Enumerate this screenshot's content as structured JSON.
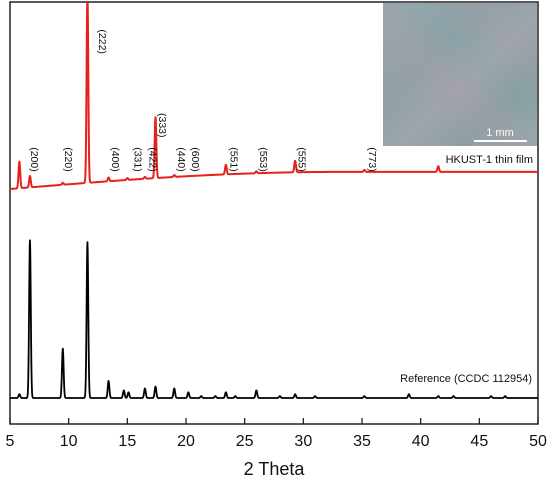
{
  "chart_data": {
    "type": "line",
    "xlabel": "2 Theta",
    "ylabel": "",
    "xlim": [
      5,
      50
    ],
    "x_ticks": [
      5,
      10,
      15,
      20,
      25,
      30,
      35,
      40,
      45,
      50
    ],
    "grid": false,
    "y_ticks_shown": false,
    "series": [
      {
        "name": "HKUST-1 thin film",
        "color": "#e8201a",
        "offset": 1.1,
        "baseline_start": 0.0,
        "baseline_end": 0.09,
        "peaks": [
          {
            "x": 5.8,
            "h": 0.14
          },
          {
            "x": 6.7,
            "h": 0.06
          },
          {
            "x": 9.5,
            "h": 0.01
          },
          {
            "x": 11.6,
            "h": 1.0
          },
          {
            "x": 13.4,
            "h": 0.02
          },
          {
            "x": 15.0,
            "h": 0.01
          },
          {
            "x": 16.5,
            "h": 0.01
          },
          {
            "x": 17.4,
            "h": 0.32
          },
          {
            "x": 19.0,
            "h": 0.01
          },
          {
            "x": 23.4,
            "h": 0.05
          },
          {
            "x": 26.0,
            "h": 0.01
          },
          {
            "x": 29.3,
            "h": 0.06
          },
          {
            "x": 35.2,
            "h": 0.01
          },
          {
            "x": 41.5,
            "h": 0.03
          }
        ],
        "peak_labels": [
          {
            "text": "(200)",
            "x": 6.5,
            "y": 1.32
          },
          {
            "text": "(220)",
            "x": 9.4,
            "y": 1.32
          },
          {
            "text": "(222)",
            "x": 12.3,
            "y": 1.94
          },
          {
            "text": "(400)",
            "x": 13.4,
            "y": 1.32
          },
          {
            "text": "(331)",
            "x": 15.3,
            "y": 1.32
          },
          {
            "text": "(422)",
            "x": 16.6,
            "y": 1.32
          },
          {
            "text": "(333)",
            "x": 17.4,
            "y": 1.5
          },
          {
            "text": "(440)",
            "x": 19.0,
            "y": 1.32
          },
          {
            "text": "(600)",
            "x": 20.2,
            "y": 1.32
          },
          {
            "text": "(551)",
            "x": 23.5,
            "y": 1.32
          },
          {
            "text": "(553)",
            "x": 26.0,
            "y": 1.32
          },
          {
            "text": "(555)",
            "x": 29.3,
            "y": 1.32
          },
          {
            "text": "(773)",
            "x": 35.3,
            "y": 1.32
          }
        ]
      },
      {
        "name": "Reference (CCDC 112954)",
        "color": "#000000",
        "offset": 0.0,
        "baseline_start": 0.0,
        "baseline_end": 0.0,
        "peaks": [
          {
            "x": 5.8,
            "h": 0.02
          },
          {
            "x": 6.7,
            "h": 0.83
          },
          {
            "x": 9.5,
            "h": 0.26
          },
          {
            "x": 11.6,
            "h": 0.82
          },
          {
            "x": 13.4,
            "h": 0.09
          },
          {
            "x": 14.7,
            "h": 0.04
          },
          {
            "x": 15.1,
            "h": 0.03
          },
          {
            "x": 16.5,
            "h": 0.05
          },
          {
            "x": 17.4,
            "h": 0.06
          },
          {
            "x": 19.0,
            "h": 0.05
          },
          {
            "x": 20.2,
            "h": 0.03
          },
          {
            "x": 21.3,
            "h": 0.01
          },
          {
            "x": 22.5,
            "h": 0.01
          },
          {
            "x": 23.4,
            "h": 0.03
          },
          {
            "x": 24.2,
            "h": 0.01
          },
          {
            "x": 26.0,
            "h": 0.04
          },
          {
            "x": 28.0,
            "h": 0.01
          },
          {
            "x": 29.3,
            "h": 0.02
          },
          {
            "x": 31.0,
            "h": 0.01
          },
          {
            "x": 35.2,
            "h": 0.01
          },
          {
            "x": 39.0,
            "h": 0.02
          },
          {
            "x": 41.5,
            "h": 0.01
          },
          {
            "x": 42.8,
            "h": 0.01
          },
          {
            "x": 46.0,
            "h": 0.01
          },
          {
            "x": 47.2,
            "h": 0.01
          }
        ]
      }
    ],
    "inset": {
      "description_color_base": "#8aa4a8",
      "scale_bar_label": "1 mm"
    }
  }
}
